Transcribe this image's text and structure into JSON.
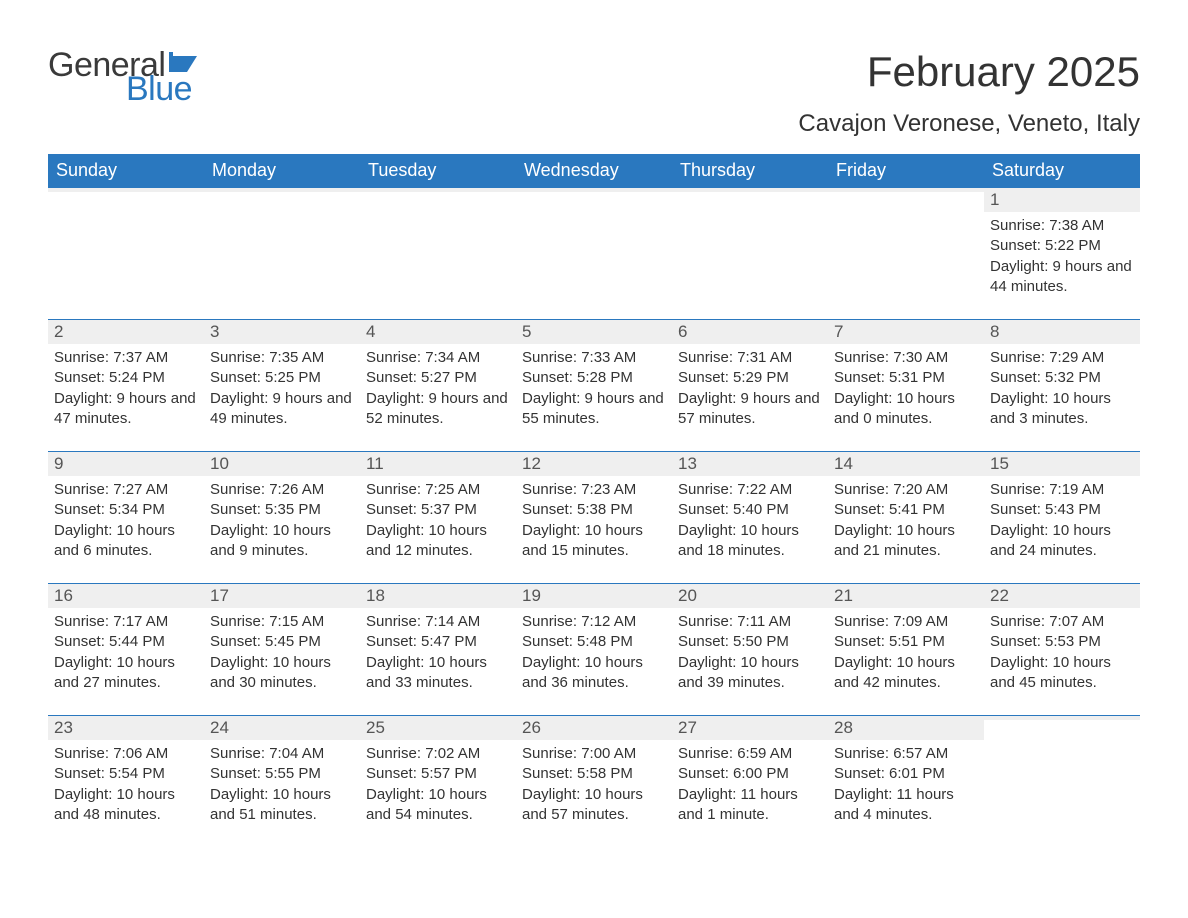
{
  "logo": {
    "word1": "General",
    "word2": "Blue",
    "word1_color": "#3a3a3a",
    "word2_color": "#2a78bf",
    "flag_color": "#2a78bf"
  },
  "title": "February 2025",
  "location": "Cavajon Veronese, Veneto, Italy",
  "colors": {
    "header_bg": "#2a78bf",
    "header_text": "#ffffff",
    "day_bar_bg": "#efefef",
    "day_bar_border": "#2a78bf",
    "body_text": "#333333",
    "day_number_text": "#555555",
    "page_bg": "#ffffff"
  },
  "fonts": {
    "title_size_pt": 32,
    "location_size_pt": 18,
    "header_size_pt": 14,
    "daynum_size_pt": 13,
    "body_size_pt": 11,
    "family": "Arial"
  },
  "weekdays": [
    "Sunday",
    "Monday",
    "Tuesday",
    "Wednesday",
    "Thursday",
    "Friday",
    "Saturday"
  ],
  "grid": [
    [
      {
        "day": "",
        "sunrise": "",
        "sunset": "",
        "daylight": ""
      },
      {
        "day": "",
        "sunrise": "",
        "sunset": "",
        "daylight": ""
      },
      {
        "day": "",
        "sunrise": "",
        "sunset": "",
        "daylight": ""
      },
      {
        "day": "",
        "sunrise": "",
        "sunset": "",
        "daylight": ""
      },
      {
        "day": "",
        "sunrise": "",
        "sunset": "",
        "daylight": ""
      },
      {
        "day": "",
        "sunrise": "",
        "sunset": "",
        "daylight": ""
      },
      {
        "day": "1",
        "sunrise": "Sunrise: 7:38 AM",
        "sunset": "Sunset: 5:22 PM",
        "daylight": "Daylight: 9 hours and 44 minutes."
      }
    ],
    [
      {
        "day": "2",
        "sunrise": "Sunrise: 7:37 AM",
        "sunset": "Sunset: 5:24 PM",
        "daylight": "Daylight: 9 hours and 47 minutes."
      },
      {
        "day": "3",
        "sunrise": "Sunrise: 7:35 AM",
        "sunset": "Sunset: 5:25 PM",
        "daylight": "Daylight: 9 hours and 49 minutes."
      },
      {
        "day": "4",
        "sunrise": "Sunrise: 7:34 AM",
        "sunset": "Sunset: 5:27 PM",
        "daylight": "Daylight: 9 hours and 52 minutes."
      },
      {
        "day": "5",
        "sunrise": "Sunrise: 7:33 AM",
        "sunset": "Sunset: 5:28 PM",
        "daylight": "Daylight: 9 hours and 55 minutes."
      },
      {
        "day": "6",
        "sunrise": "Sunrise: 7:31 AM",
        "sunset": "Sunset: 5:29 PM",
        "daylight": "Daylight: 9 hours and 57 minutes."
      },
      {
        "day": "7",
        "sunrise": "Sunrise: 7:30 AM",
        "sunset": "Sunset: 5:31 PM",
        "daylight": "Daylight: 10 hours and 0 minutes."
      },
      {
        "day": "8",
        "sunrise": "Sunrise: 7:29 AM",
        "sunset": "Sunset: 5:32 PM",
        "daylight": "Daylight: 10 hours and 3 minutes."
      }
    ],
    [
      {
        "day": "9",
        "sunrise": "Sunrise: 7:27 AM",
        "sunset": "Sunset: 5:34 PM",
        "daylight": "Daylight: 10 hours and 6 minutes."
      },
      {
        "day": "10",
        "sunrise": "Sunrise: 7:26 AM",
        "sunset": "Sunset: 5:35 PM",
        "daylight": "Daylight: 10 hours and 9 minutes."
      },
      {
        "day": "11",
        "sunrise": "Sunrise: 7:25 AM",
        "sunset": "Sunset: 5:37 PM",
        "daylight": "Daylight: 10 hours and 12 minutes."
      },
      {
        "day": "12",
        "sunrise": "Sunrise: 7:23 AM",
        "sunset": "Sunset: 5:38 PM",
        "daylight": "Daylight: 10 hours and 15 minutes."
      },
      {
        "day": "13",
        "sunrise": "Sunrise: 7:22 AM",
        "sunset": "Sunset: 5:40 PM",
        "daylight": "Daylight: 10 hours and 18 minutes."
      },
      {
        "day": "14",
        "sunrise": "Sunrise: 7:20 AM",
        "sunset": "Sunset: 5:41 PM",
        "daylight": "Daylight: 10 hours and 21 minutes."
      },
      {
        "day": "15",
        "sunrise": "Sunrise: 7:19 AM",
        "sunset": "Sunset: 5:43 PM",
        "daylight": "Daylight: 10 hours and 24 minutes."
      }
    ],
    [
      {
        "day": "16",
        "sunrise": "Sunrise: 7:17 AM",
        "sunset": "Sunset: 5:44 PM",
        "daylight": "Daylight: 10 hours and 27 minutes."
      },
      {
        "day": "17",
        "sunrise": "Sunrise: 7:15 AM",
        "sunset": "Sunset: 5:45 PM",
        "daylight": "Daylight: 10 hours and 30 minutes."
      },
      {
        "day": "18",
        "sunrise": "Sunrise: 7:14 AM",
        "sunset": "Sunset: 5:47 PM",
        "daylight": "Daylight: 10 hours and 33 minutes."
      },
      {
        "day": "19",
        "sunrise": "Sunrise: 7:12 AM",
        "sunset": "Sunset: 5:48 PM",
        "daylight": "Daylight: 10 hours and 36 minutes."
      },
      {
        "day": "20",
        "sunrise": "Sunrise: 7:11 AM",
        "sunset": "Sunset: 5:50 PM",
        "daylight": "Daylight: 10 hours and 39 minutes."
      },
      {
        "day": "21",
        "sunrise": "Sunrise: 7:09 AM",
        "sunset": "Sunset: 5:51 PM",
        "daylight": "Daylight: 10 hours and 42 minutes."
      },
      {
        "day": "22",
        "sunrise": "Sunrise: 7:07 AM",
        "sunset": "Sunset: 5:53 PM",
        "daylight": "Daylight: 10 hours and 45 minutes."
      }
    ],
    [
      {
        "day": "23",
        "sunrise": "Sunrise: 7:06 AM",
        "sunset": "Sunset: 5:54 PM",
        "daylight": "Daylight: 10 hours and 48 minutes."
      },
      {
        "day": "24",
        "sunrise": "Sunrise: 7:04 AM",
        "sunset": "Sunset: 5:55 PM",
        "daylight": "Daylight: 10 hours and 51 minutes."
      },
      {
        "day": "25",
        "sunrise": "Sunrise: 7:02 AM",
        "sunset": "Sunset: 5:57 PM",
        "daylight": "Daylight: 10 hours and 54 minutes."
      },
      {
        "day": "26",
        "sunrise": "Sunrise: 7:00 AM",
        "sunset": "Sunset: 5:58 PM",
        "daylight": "Daylight: 10 hours and 57 minutes."
      },
      {
        "day": "27",
        "sunrise": "Sunrise: 6:59 AM",
        "sunset": "Sunset: 6:00 PM",
        "daylight": "Daylight: 11 hours and 1 minute."
      },
      {
        "day": "28",
        "sunrise": "Sunrise: 6:57 AM",
        "sunset": "Sunset: 6:01 PM",
        "daylight": "Daylight: 11 hours and 4 minutes."
      },
      {
        "day": "",
        "sunrise": "",
        "sunset": "",
        "daylight": ""
      }
    ]
  ]
}
